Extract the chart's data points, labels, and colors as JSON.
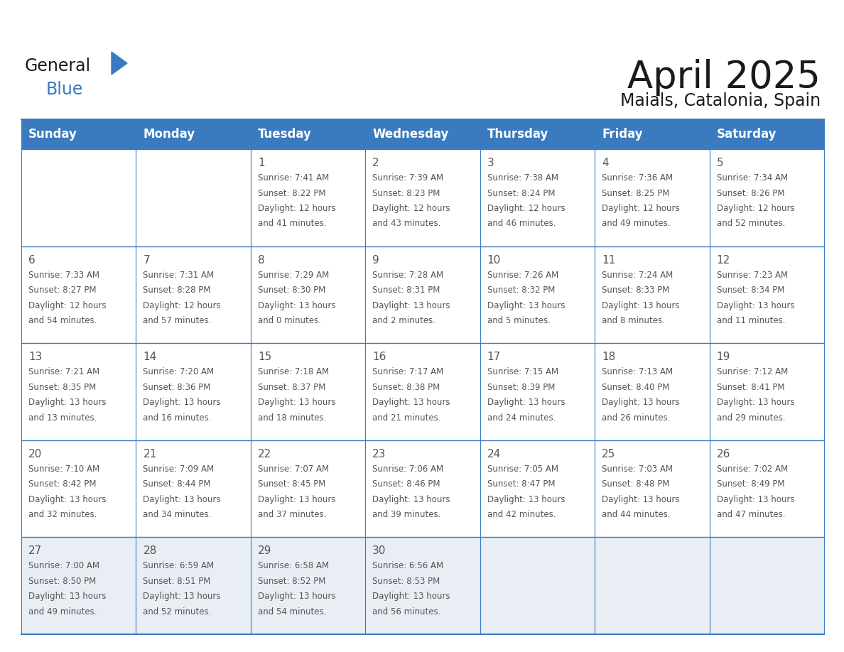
{
  "title": "April 2025",
  "subtitle": "Maials, Catalonia, Spain",
  "header_bg_color": "#3a7bbf",
  "header_text_color": "#ffffff",
  "cell_bg_color": "#ffffff",
  "last_row_bg_color": "#e8eef4",
  "grid_line_color": "#3a7bbf",
  "text_color": "#555555",
  "days_of_week": [
    "Sunday",
    "Monday",
    "Tuesday",
    "Wednesday",
    "Thursday",
    "Friday",
    "Saturday"
  ],
  "weeks": [
    [
      {
        "day": "",
        "sunrise": "",
        "sunset": "",
        "daylight": ""
      },
      {
        "day": "",
        "sunrise": "",
        "sunset": "",
        "daylight": ""
      },
      {
        "day": "1",
        "sunrise": "7:41 AM",
        "sunset": "8:22 PM",
        "daylight": "12 hours and 41 minutes."
      },
      {
        "day": "2",
        "sunrise": "7:39 AM",
        "sunset": "8:23 PM",
        "daylight": "12 hours and 43 minutes."
      },
      {
        "day": "3",
        "sunrise": "7:38 AM",
        "sunset": "8:24 PM",
        "daylight": "12 hours and 46 minutes."
      },
      {
        "day": "4",
        "sunrise": "7:36 AM",
        "sunset": "8:25 PM",
        "daylight": "12 hours and 49 minutes."
      },
      {
        "day": "5",
        "sunrise": "7:34 AM",
        "sunset": "8:26 PM",
        "daylight": "12 hours and 52 minutes."
      }
    ],
    [
      {
        "day": "6",
        "sunrise": "7:33 AM",
        "sunset": "8:27 PM",
        "daylight": "12 hours and 54 minutes."
      },
      {
        "day": "7",
        "sunrise": "7:31 AM",
        "sunset": "8:28 PM",
        "daylight": "12 hours and 57 minutes."
      },
      {
        "day": "8",
        "sunrise": "7:29 AM",
        "sunset": "8:30 PM",
        "daylight": "13 hours and 0 minutes."
      },
      {
        "day": "9",
        "sunrise": "7:28 AM",
        "sunset": "8:31 PM",
        "daylight": "13 hours and 2 minutes."
      },
      {
        "day": "10",
        "sunrise": "7:26 AM",
        "sunset": "8:32 PM",
        "daylight": "13 hours and 5 minutes."
      },
      {
        "day": "11",
        "sunrise": "7:24 AM",
        "sunset": "8:33 PM",
        "daylight": "13 hours and 8 minutes."
      },
      {
        "day": "12",
        "sunrise": "7:23 AM",
        "sunset": "8:34 PM",
        "daylight": "13 hours and 11 minutes."
      }
    ],
    [
      {
        "day": "13",
        "sunrise": "7:21 AM",
        "sunset": "8:35 PM",
        "daylight": "13 hours and 13 minutes."
      },
      {
        "day": "14",
        "sunrise": "7:20 AM",
        "sunset": "8:36 PM",
        "daylight": "13 hours and 16 minutes."
      },
      {
        "day": "15",
        "sunrise": "7:18 AM",
        "sunset": "8:37 PM",
        "daylight": "13 hours and 18 minutes."
      },
      {
        "day": "16",
        "sunrise": "7:17 AM",
        "sunset": "8:38 PM",
        "daylight": "13 hours and 21 minutes."
      },
      {
        "day": "17",
        "sunrise": "7:15 AM",
        "sunset": "8:39 PM",
        "daylight": "13 hours and 24 minutes."
      },
      {
        "day": "18",
        "sunrise": "7:13 AM",
        "sunset": "8:40 PM",
        "daylight": "13 hours and 26 minutes."
      },
      {
        "day": "19",
        "sunrise": "7:12 AM",
        "sunset": "8:41 PM",
        "daylight": "13 hours and 29 minutes."
      }
    ],
    [
      {
        "day": "20",
        "sunrise": "7:10 AM",
        "sunset": "8:42 PM",
        "daylight": "13 hours and 32 minutes."
      },
      {
        "day": "21",
        "sunrise": "7:09 AM",
        "sunset": "8:44 PM",
        "daylight": "13 hours and 34 minutes."
      },
      {
        "day": "22",
        "sunrise": "7:07 AM",
        "sunset": "8:45 PM",
        "daylight": "13 hours and 37 minutes."
      },
      {
        "day": "23",
        "sunrise": "7:06 AM",
        "sunset": "8:46 PM",
        "daylight": "13 hours and 39 minutes."
      },
      {
        "day": "24",
        "sunrise": "7:05 AM",
        "sunset": "8:47 PM",
        "daylight": "13 hours and 42 minutes."
      },
      {
        "day": "25",
        "sunrise": "7:03 AM",
        "sunset": "8:48 PM",
        "daylight": "13 hours and 44 minutes."
      },
      {
        "day": "26",
        "sunrise": "7:02 AM",
        "sunset": "8:49 PM",
        "daylight": "13 hours and 47 minutes."
      }
    ],
    [
      {
        "day": "27",
        "sunrise": "7:00 AM",
        "sunset": "8:50 PM",
        "daylight": "13 hours and 49 minutes."
      },
      {
        "day": "28",
        "sunrise": "6:59 AM",
        "sunset": "8:51 PM",
        "daylight": "13 hours and 52 minutes."
      },
      {
        "day": "29",
        "sunrise": "6:58 AM",
        "sunset": "8:52 PM",
        "daylight": "13 hours and 54 minutes."
      },
      {
        "day": "30",
        "sunrise": "6:56 AM",
        "sunset": "8:53 PM",
        "daylight": "13 hours and 56 minutes."
      },
      {
        "day": "",
        "sunrise": "",
        "sunset": "",
        "daylight": ""
      },
      {
        "day": "",
        "sunrise": "",
        "sunset": "",
        "daylight": ""
      },
      {
        "day": "",
        "sunrise": "",
        "sunset": "",
        "daylight": ""
      }
    ]
  ],
  "logo_text_general": "General",
  "logo_text_blue": "Blue",
  "logo_triangle_color": "#3a7bbf",
  "title_fontsize": 38,
  "subtitle_fontsize": 17,
  "header_fontsize": 12,
  "day_number_fontsize": 11,
  "cell_text_fontsize": 8.5
}
